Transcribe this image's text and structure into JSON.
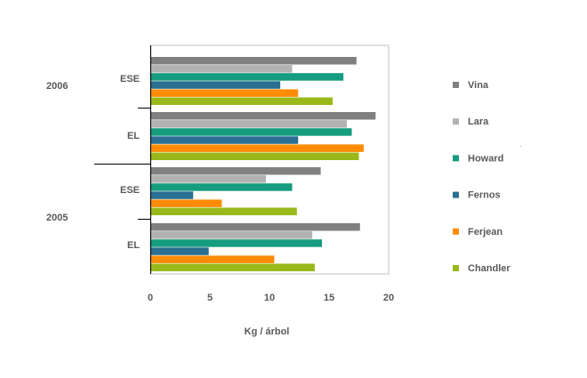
{
  "chart_data": {
    "type": "bar",
    "orientation": "horizontal",
    "title": "",
    "xlabel": "Kg / árbol",
    "ylabel": "",
    "xlim": [
      0,
      20
    ],
    "x_ticks": [
      "0",
      "5",
      "10",
      "15",
      "20"
    ],
    "grid": false,
    "legend_position": "right",
    "groups": [
      {
        "year": "2006",
        "subgroups": [
          "ESE",
          "EL"
        ]
      },
      {
        "year": "2005",
        "subgroups": [
          "ESE",
          "EL"
        ]
      }
    ],
    "categories": [
      "2006 ESE",
      "2006 EL",
      "2005 ESE",
      "2005 EL"
    ],
    "series": [
      {
        "name": "Vina",
        "color": "#808080",
        "values": [
          17.3,
          18.9,
          14.3,
          17.6
        ]
      },
      {
        "name": "Lara",
        "color": "#b2b2b2",
        "values": [
          11.9,
          16.5,
          9.7,
          13.6
        ]
      },
      {
        "name": "Howard",
        "color": "#169c7e",
        "values": [
          16.2,
          16.9,
          11.9,
          14.4
        ]
      },
      {
        "name": "Fernos",
        "color": "#2a6f91",
        "values": [
          10.9,
          12.4,
          3.6,
          4.9
        ]
      },
      {
        "name": "Ferjean",
        "color": "#ff8c00",
        "values": [
          12.4,
          17.9,
          6.0,
          10.4
        ]
      },
      {
        "name": "Chandler",
        "color": "#99b81a",
        "values": [
          15.3,
          17.5,
          12.3,
          13.8
        ]
      }
    ]
  }
}
